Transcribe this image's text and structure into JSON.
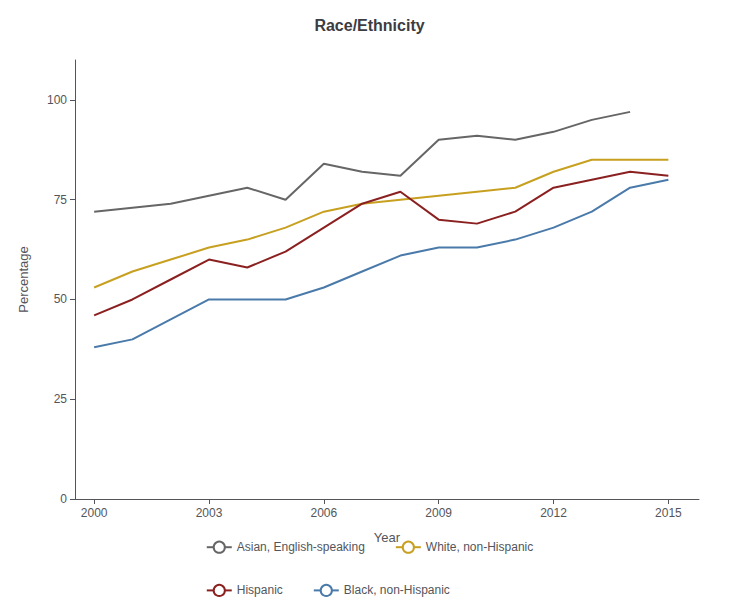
{
  "chart_data": {
    "type": "line",
    "title": "Race/Ethnicity",
    "x_label": "Year",
    "y_label": "Percentage",
    "x": [
      2000,
      2001,
      2002,
      2003,
      2004,
      2005,
      2006,
      2007,
      2008,
      2009,
      2010,
      2011,
      2012,
      2013,
      2014,
      2015
    ],
    "series": [
      {
        "name": "Asian, English-speaking",
        "color": "#666666",
        "values": [
          72,
          73,
          74,
          76,
          78,
          75,
          84,
          82,
          81,
          90,
          91,
          90,
          92,
          95,
          97,
          null
        ]
      },
      {
        "name": "White, non-Hispanic",
        "color": "#c8a020",
        "values": [
          53,
          57,
          60,
          63,
          65,
          68,
          72,
          74,
          75,
          76,
          77,
          78,
          82,
          85,
          85,
          85
        ]
      },
      {
        "name": "Hispanic",
        "color": "#8b2020",
        "values": [
          46,
          50,
          55,
          60,
          58,
          62,
          68,
          74,
          77,
          70,
          69,
          72,
          78,
          80,
          82,
          81
        ]
      },
      {
        "name": "Black, non-Hispanic",
        "color": "#4a7aaa",
        "values": [
          38,
          40,
          45,
          50,
          50,
          50,
          53,
          57,
          61,
          63,
          63,
          65,
          68,
          72,
          78,
          80
        ]
      }
    ],
    "xlim": [
      1999.5,
      2015.8
    ],
    "xticks": [
      2000,
      2003,
      2006,
      2009,
      2012,
      2015
    ],
    "ylim": [
      0,
      110
    ],
    "yticks": [
      0,
      25,
      50,
      75,
      100
    ],
    "grid": false,
    "legend": "bottom"
  }
}
